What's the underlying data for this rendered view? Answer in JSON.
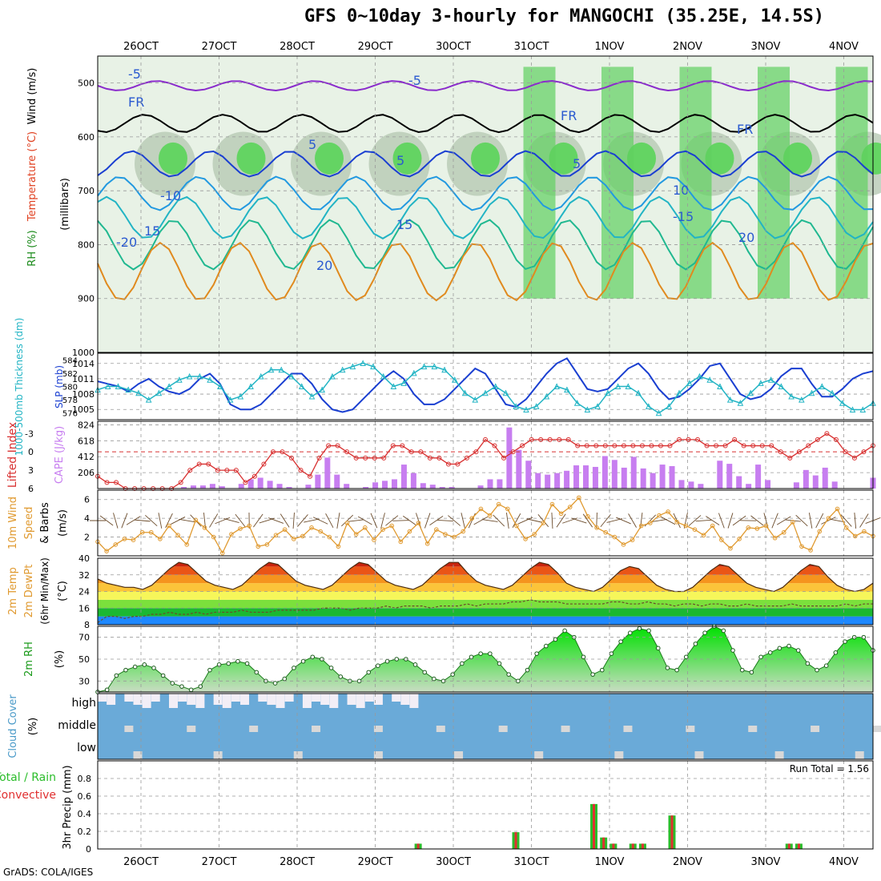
{
  "title": "GFS 0~10day 3-hourly for MANGOCHI (35.25E, 14.5S)",
  "credit": "GrADS: COLA/IGES",
  "run_total_label": "Run Total = 1.56",
  "colors": {
    "rh_green": "#22cc22",
    "temp_line": "#e08a1e",
    "slp_line": "#1a3fd1",
    "thickness_line": "#22b4c4",
    "cape_bar": "#c77ef0",
    "lifted_line": "#d83030",
    "wind_line": "#e09a30",
    "rh2m_fill": "#3ccf3c",
    "cloud_fill": "#6aaad8",
    "precip_total": "#2bbd2b",
    "precip_conv": "#e03030"
  },
  "chart_data": [
    {
      "type": "heatmap",
      "panel": "upper-air",
      "ylabel_parts": [
        "RH (%)",
        "Temperature (°C)",
        "Wind (m/s)"
      ],
      "ylabel2": "(millibars)",
      "yticks": [
        500,
        600,
        700,
        800,
        900,
        1000
      ],
      "ylim": [
        450,
        1000
      ],
      "x_dates": [
        "26OCT",
        "27OCT",
        "28OCT",
        "29OCT",
        "30OCT",
        "31OCT",
        "1NOV",
        "2NOV",
        "3NOV",
        "4NOV"
      ],
      "contour_labels": [
        "-5",
        "-5",
        "FR",
        "FR",
        "FR",
        "5",
        "5",
        "-10",
        "10",
        "15",
        "15",
        "-15",
        "-20",
        "20",
        "20",
        "5"
      ]
    },
    {
      "type": "line",
      "panel": "slp-thickness",
      "ylabel_left": "1000-500mb Thickness (dm)",
      "ylabel_right": "SLP (mb)",
      "left_ticks": [
        576,
        578,
        580,
        582,
        584
      ],
      "right_ticks": [
        1005,
        1008,
        1011,
        1014
      ],
      "series": [
        {
          "name": "SLP (mb)",
          "values": [
            1010.5,
            1010,
            1009.5,
            1008.5,
            1010,
            1011,
            1009.5,
            1008.5,
            1008,
            1009,
            1011,
            1012,
            1010,
            1006,
            1005,
            1005,
            1006,
            1008,
            1010,
            1012,
            1012,
            1010,
            1007,
            1005,
            1004.5,
            1005,
            1007,
            1009,
            1011,
            1012.5,
            1011,
            1008,
            1006,
            1006,
            1007,
            1009,
            1011,
            1013,
            1012,
            1009,
            1006,
            1005.5,
            1007,
            1009.5,
            1012,
            1014,
            1015,
            1012,
            1009,
            1008.5,
            1009,
            1011,
            1013,
            1014,
            1012,
            1009,
            1007,
            1007.5,
            1009,
            1011,
            1013.5,
            1014,
            1011,
            1008,
            1007,
            1007.5,
            1009,
            1011.5,
            1013,
            1013,
            1010,
            1007.5,
            1007.5,
            1009,
            1011,
            1012,
            1012.5
          ]
        },
        {
          "name": "1000-500mb Thickness (dm)",
          "values": [
            579.5,
            580,
            580,
            579.5,
            579,
            578,
            579,
            580,
            581,
            581.5,
            581.5,
            581,
            580,
            578,
            578.5,
            580,
            581.5,
            582.5,
            582.5,
            581.5,
            580,
            578.5,
            579.5,
            581.5,
            582.5,
            583,
            583.5,
            583,
            581.5,
            580,
            580.5,
            582,
            583,
            583,
            582.5,
            581,
            579,
            578,
            579,
            580,
            579,
            577,
            576.5,
            577,
            578.5,
            580,
            579.5,
            577.5,
            576.5,
            577,
            579,
            580,
            580,
            579,
            577,
            576,
            577,
            579,
            580.5,
            581.5,
            581,
            580,
            578,
            577.5,
            579,
            580.5,
            581,
            580,
            578.5,
            578,
            579,
            580,
            579,
            577.5,
            576.5,
            576.5,
            577.5
          ]
        }
      ]
    },
    {
      "type": "bar",
      "panel": "cape-lifted",
      "ylabel_left": "Lifted Index",
      "ylabel_right": "CAPE (J/kg)",
      "left_ticks": [
        "-3",
        "0",
        "3",
        "6"
      ],
      "right_ticks": [
        206,
        412,
        618,
        824
      ],
      "series": [
        {
          "name": "CAPE (J/kg)",
          "values": [
            0,
            0,
            0,
            0,
            0,
            0,
            0,
            0,
            0,
            20,
            40,
            40,
            60,
            30,
            0,
            60,
            120,
            140,
            100,
            60,
            20,
            0,
            50,
            180,
            400,
            180,
            60,
            0,
            20,
            80,
            100,
            120,
            310,
            200,
            70,
            50,
            20,
            20,
            0,
            0,
            40,
            120,
            120,
            790,
            500,
            360,
            200,
            180,
            200,
            230,
            300,
            300,
            280,
            420,
            370,
            270,
            410,
            260,
            200,
            310,
            290,
            110,
            90,
            60,
            0,
            360,
            320,
            160,
            60,
            310,
            110,
            0,
            0,
            80,
            240,
            170,
            270,
            90,
            0,
            0,
            0,
            140
          ]
        },
        {
          "name": "Lifted Index",
          "values": [
            4,
            5,
            5,
            6,
            6,
            6,
            6,
            6,
            6,
            5,
            3,
            2,
            2,
            3,
            3,
            3,
            5,
            4,
            2,
            0,
            0,
            1,
            3,
            4,
            1,
            -1,
            -1,
            0,
            1,
            1,
            1,
            1,
            -1,
            -1,
            0,
            0,
            1,
            1,
            2,
            2,
            1,
            0,
            -2,
            -1,
            1,
            0,
            -1,
            -2,
            -2,
            -2,
            -2,
            -2,
            -1,
            -1,
            -1,
            -1,
            -1,
            -1,
            -1,
            -1,
            -1,
            -1,
            -1,
            -2,
            -2,
            -2,
            -1,
            -1,
            -1,
            -2,
            -1,
            -1,
            -1,
            -1,
            0,
            1,
            0,
            -1,
            -2,
            -3,
            -2,
            0,
            1,
            0,
            -1
          ]
        }
      ]
    },
    {
      "type": "line",
      "panel": "10m-wind",
      "ylabel": "10m Wind Speed & Barbs (m/s)",
      "yticks": [
        2,
        4,
        6
      ],
      "ylim": [
        0,
        7
      ],
      "series": [
        {
          "name": "10m Wind Speed",
          "values": [
            1.5,
            0.5,
            1.2,
            1.8,
            1.7,
            2.5,
            2.5,
            1.8,
            3.2,
            2.2,
            1.2,
            3.8,
            3.0,
            2.0,
            0.3,
            2.3,
            2.9,
            3.2,
            1.0,
            1.2,
            2.2,
            2.8,
            1.8,
            2.1,
            3.0,
            2.6,
            2.0,
            1.0,
            3.5,
            2.3,
            3.0,
            1.7,
            2.8,
            3.2,
            1.5,
            2.6,
            3.5,
            1.3,
            2.8,
            2.3,
            2.0,
            2.6,
            4.0,
            5.0,
            4.3,
            5.5,
            5.0,
            3.2,
            1.8,
            2.3,
            3.5,
            5.5,
            4.5,
            5.2,
            6.2,
            4.2,
            3.0,
            2.5,
            2.0,
            1.2,
            1.7,
            3.2,
            3.5,
            4.3,
            4.7,
            3.6,
            3.2,
            2.8,
            2.2,
            3.2,
            1.7,
            0.8,
            1.8,
            3.0,
            2.9,
            3.2,
            1.9,
            2.5,
            3.6,
            1.0,
            0.6,
            2.6,
            4.0,
            5.0,
            3.0,
            2.1,
            2.6,
            2.1
          ]
        }
      ]
    },
    {
      "type": "area",
      "panel": "2m-temp",
      "ylabel": "2m Temp 2m DewPt (6hr Min/Max) (°C)",
      "yticks": [
        8,
        16,
        24,
        32,
        40
      ],
      "ylim": [
        8,
        40
      ],
      "series": [
        {
          "name": "2m Temp",
          "values": [
            30,
            28,
            27,
            26,
            26,
            25,
            27,
            31,
            35,
            38,
            37,
            33,
            29,
            27,
            26,
            25,
            27,
            31,
            35,
            38,
            37,
            33,
            29,
            27,
            26,
            25,
            27,
            31,
            35,
            38,
            37,
            33,
            29,
            27,
            26,
            25,
            27,
            31,
            35,
            38,
            38,
            33,
            29,
            27,
            26,
            25,
            27,
            31,
            35,
            38,
            37,
            33,
            28,
            26,
            25,
            24,
            26,
            30,
            34,
            36,
            35,
            31,
            27,
            25,
            24,
            24,
            26,
            30,
            34,
            37,
            36,
            32,
            28,
            26,
            25,
            24,
            26,
            30,
            34,
            37,
            36,
            31,
            27,
            25,
            24,
            25,
            28
          ]
        },
        {
          "name": "2m DewPt",
          "values": [
            9,
            12,
            12,
            11,
            12,
            12,
            13,
            13,
            14,
            13,
            13,
            14,
            13,
            14,
            14,
            14,
            15,
            14,
            14,
            14,
            15,
            15,
            15,
            15,
            15,
            16,
            16,
            16,
            15,
            16,
            16,
            16,
            17,
            16,
            17,
            17,
            17,
            16,
            17,
            17,
            17,
            18,
            17,
            18,
            18,
            18,
            19,
            19,
            20,
            19,
            19,
            19,
            18,
            18,
            18,
            18,
            18,
            19,
            19,
            18,
            18,
            19,
            18,
            18,
            17,
            18,
            18,
            17,
            18,
            18,
            17,
            17,
            18,
            17,
            17,
            17,
            17,
            18,
            17,
            17,
            17,
            17,
            17,
            18,
            17,
            18,
            18
          ]
        }
      ]
    },
    {
      "type": "area",
      "panel": "2m-rh",
      "ylabel": "2m RH (%)",
      "yticks": [
        30,
        50,
        70
      ],
      "ylim": [
        20,
        80
      ],
      "series": [
        {
          "name": "2m RH",
          "values": [
            20,
            22,
            35,
            40,
            43,
            45,
            42,
            35,
            28,
            25,
            22,
            25,
            40,
            45,
            46,
            48,
            46,
            38,
            30,
            28,
            32,
            42,
            48,
            52,
            50,
            42,
            34,
            30,
            30,
            38,
            44,
            48,
            50,
            50,
            45,
            38,
            32,
            30,
            36,
            46,
            52,
            55,
            55,
            46,
            36,
            30,
            40,
            55,
            62,
            68,
            76,
            70,
            52,
            36,
            40,
            55,
            66,
            74,
            78,
            76,
            60,
            42,
            40,
            52,
            64,
            74,
            80,
            76,
            58,
            40,
            38,
            52,
            56,
            60,
            62,
            58,
            46,
            40,
            44,
            56,
            66,
            70,
            70,
            58
          ]
        }
      ]
    },
    {
      "type": "heatmap",
      "panel": "cloud-cover",
      "ylabel": "Cloud Cover (%)",
      "levels": [
        "high",
        "middle",
        "low"
      ]
    },
    {
      "type": "bar",
      "panel": "3hr-precip",
      "ylabel": "3hr Precip (mm)",
      "legend": [
        "Total / Rain",
        "Convective"
      ],
      "yticks": [
        0,
        0.2,
        0.4,
        0.6,
        0.8
      ],
      "ylim": [
        0,
        1.0
      ],
      "x_dates": [
        "26OCT",
        "27OCT",
        "28OCT",
        "29OCT",
        "30OCT",
        "31OCT",
        "1NOV",
        "2NOV",
        "3NOV",
        "4NOV"
      ],
      "events": [
        {
          "day_offset": 3.75,
          "value": 0.06
        },
        {
          "day_offset": 5.0,
          "value": 0.19
        },
        {
          "day_offset": 6.0,
          "value": 0.51
        },
        {
          "day_offset": 6.125,
          "value": 0.13
        },
        {
          "day_offset": 6.25,
          "value": 0.06
        },
        {
          "day_offset": 6.5,
          "value": 0.06
        },
        {
          "day_offset": 6.625,
          "value": 0.06
        },
        {
          "day_offset": 7.0,
          "value": 0.38
        },
        {
          "day_offset": 8.5,
          "value": 0.06
        },
        {
          "day_offset": 8.625,
          "value": 0.06
        }
      ]
    }
  ]
}
